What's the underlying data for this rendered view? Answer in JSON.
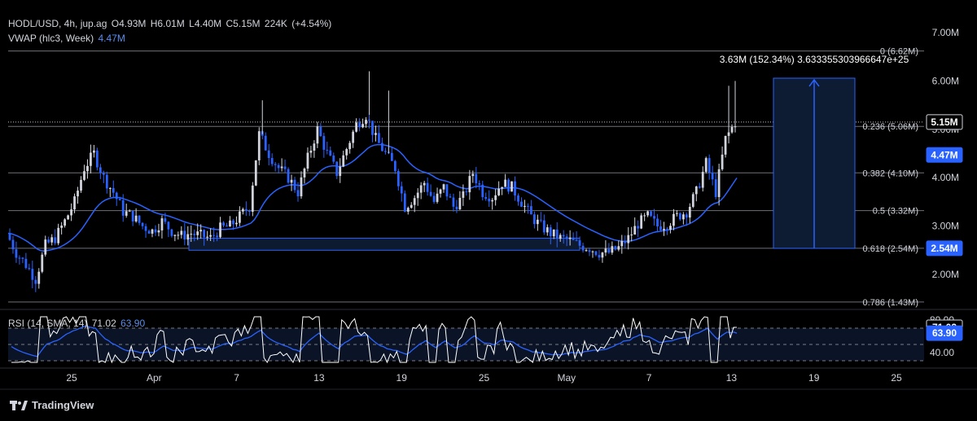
{
  "header": {
    "symbol": "HODL/USD, 4h, jup.ag",
    "open": "O4.93M",
    "high": "H6.01M",
    "low": "L4.40M",
    "close": "C5.15M",
    "volume": "224K",
    "change": "(+4.54%)",
    "vwap_label": "VWAP (hlc3, Week)",
    "vwap_value": "4.47M"
  },
  "rsi_legend": {
    "label": "RSI (14, SMA, 14)",
    "value": "71.02",
    "sma": "63.90"
  },
  "measure_label": "3.63M (152.34%) 3.633355303966647e+25",
  "footer": {
    "brand": "TradingView"
  },
  "colors": {
    "background": "#000000",
    "candle_up": "#d1d4dc",
    "candle_down": "#2962ff",
    "vwap": "#2962ff",
    "rsi": "#ffffff",
    "rsi_sma": "#2962ff",
    "fib": "#8a8d96",
    "price_badge": "#2962ff"
  },
  "chart_data": {
    "type": "candlestick",
    "price_axis": {
      "min": 1.4,
      "max": 7.2,
      "unit": "M",
      "ticks": [
        "7.00M",
        "6.00M",
        "5.00M",
        "4.00M",
        "3.00M",
        "2.00M"
      ]
    },
    "price_badges": [
      {
        "label": "5.15M",
        "value": 5.15,
        "style": "last"
      },
      {
        "label": "4.47M",
        "value": 4.47,
        "style": "vwap"
      },
      {
        "label": "2.54M",
        "value": 2.54,
        "style": "measure"
      }
    ],
    "fib_levels": [
      {
        "label": "0 (6.62M)",
        "value": 6.62
      },
      {
        "label": "0.236 (5.06M)",
        "value": 5.06
      },
      {
        "label": "0.382 (4.10M)",
        "value": 4.1
      },
      {
        "label": "0.5 (3.32M)",
        "value": 3.32
      },
      {
        "label": "0.618 (2.54M)",
        "value": 2.54
      },
      {
        "label": "0.786 (1.43M)",
        "value": 1.43
      }
    ],
    "last_price": 5.15,
    "x_axis": {
      "labels": [
        "25",
        "Apr",
        "7",
        "13",
        "19",
        "25",
        "May",
        "7",
        "13",
        "19",
        "25"
      ]
    },
    "price_path": [
      [
        0,
        2.85
      ],
      [
        3,
        2.45
      ],
      [
        6,
        2.2
      ],
      [
        9,
        1.9
      ],
      [
        12,
        2.6
      ],
      [
        15,
        2.75
      ],
      [
        18,
        3.1
      ],
      [
        21,
        3.5
      ],
      [
        24,
        4.2
      ],
      [
        27,
        4.5
      ],
      [
        30,
        4.0
      ],
      [
        33,
        3.7
      ],
      [
        36,
        3.3
      ],
      [
        39,
        3.2
      ],
      [
        42,
        3.0
      ],
      [
        45,
        2.9
      ],
      [
        48,
        3.1
      ],
      [
        51,
        2.9
      ],
      [
        54,
        2.8
      ],
      [
        57,
        2.85
      ],
      [
        60,
        2.8
      ],
      [
        63,
        2.75
      ],
      [
        66,
        2.95
      ],
      [
        69,
        3.0
      ],
      [
        72,
        3.2
      ],
      [
        75,
        3.4
      ],
      [
        78,
        4.9
      ],
      [
        81,
        4.5
      ],
      [
        84,
        4.2
      ],
      [
        87,
        4.0
      ],
      [
        90,
        3.7
      ],
      [
        93,
        4.4
      ],
      [
        96,
        5.0
      ],
      [
        99,
        4.5
      ],
      [
        102,
        4.1
      ],
      [
        105,
        4.6
      ],
      [
        108,
        5.1
      ],
      [
        111,
        5.3
      ],
      [
        114,
        4.8
      ],
      [
        117,
        4.5
      ],
      [
        120,
        4.2
      ],
      [
        123,
        3.4
      ],
      [
        126,
        3.6
      ],
      [
        129,
        3.9
      ],
      [
        132,
        3.5
      ],
      [
        135,
        3.8
      ],
      [
        138,
        3.4
      ],
      [
        141,
        3.6
      ],
      [
        144,
        4.1
      ],
      [
        147,
        3.7
      ],
      [
        150,
        3.6
      ],
      [
        153,
        3.9
      ],
      [
        156,
        3.8
      ],
      [
        159,
        3.5
      ],
      [
        162,
        3.2
      ],
      [
        165,
        3.0
      ],
      [
        168,
        2.85
      ],
      [
        171,
        2.75
      ],
      [
        174,
        2.7
      ],
      [
        177,
        2.6
      ],
      [
        180,
        2.55
      ],
      [
        183,
        2.45
      ],
      [
        186,
        2.45
      ],
      [
        189,
        2.55
      ],
      [
        192,
        2.75
      ],
      [
        195,
        3.05
      ],
      [
        198,
        3.2
      ],
      [
        201,
        3.0
      ],
      [
        204,
        3.05
      ],
      [
        207,
        3.2
      ],
      [
        210,
        3.3
      ],
      [
        213,
        3.7
      ],
      [
        216,
        4.3
      ],
      [
        219,
        3.7
      ],
      [
        222,
        4.8
      ],
      [
        225,
        5.15
      ]
    ],
    "rsi": {
      "axis_ticks": [
        "80.00",
        "40.00"
      ],
      "bands": [
        70,
        50,
        30
      ],
      "last_rsi": 71.02,
      "last_sma": 63.9
    }
  }
}
